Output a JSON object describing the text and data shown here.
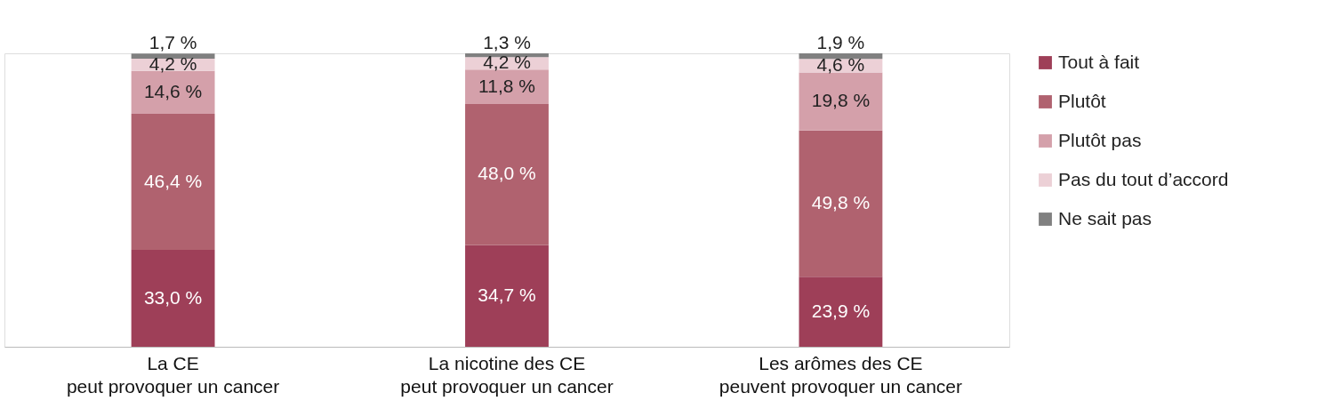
{
  "chart_data": {
    "type": "bar",
    "stacked": true,
    "legend": "right",
    "grid": false,
    "categories": [
      "La CE\npeut provoquer un cancer",
      "La nicotine des CE\npeut provoquer un cancer",
      "Les arômes des CE\npeuvent provoquer un cancer"
    ],
    "series": [
      {
        "name": "Tout à fait",
        "color": "#9e3f58",
        "values": [
          33.0,
          34.7,
          23.9
        ],
        "value_labels": [
          "33,0 %",
          "34,7 %",
          "23,9 %"
        ]
      },
      {
        "name": "Plutôt",
        "color": "#b0626f",
        "values": [
          46.4,
          48.0,
          49.8
        ],
        "value_labels": [
          "46,4 %",
          "48,0 %",
          "49,8 %"
        ]
      },
      {
        "name": "Plutôt pas",
        "color": "#d4a0aa",
        "values": [
          14.6,
          11.8,
          19.8
        ],
        "value_labels": [
          "14,6 %",
          "11,8 %",
          "19,8 %"
        ]
      },
      {
        "name": "Pas du tout d’accord",
        "color": "#ecd0d6",
        "values": [
          4.2,
          4.2,
          4.6
        ],
        "value_labels": [
          "4,2 %",
          "4,2 %",
          "4,6 %"
        ]
      },
      {
        "name": "Ne sait pas",
        "color": "#808080",
        "values": [
          1.7,
          1.3,
          1.9
        ],
        "value_labels": [
          "1,7 %",
          "1,3 %",
          "1,9 %"
        ]
      }
    ]
  }
}
